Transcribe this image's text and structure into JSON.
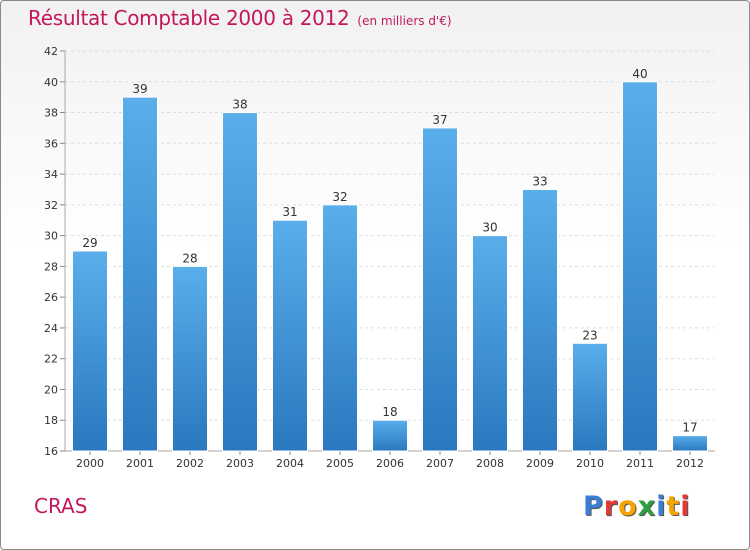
{
  "header": {
    "title": "Résultat Comptable 2000 à 2012",
    "unit": "(en milliers d'€)"
  },
  "location": "CRAS",
  "logo": {
    "letters": [
      {
        "char": "P",
        "color": "#3a7fd5"
      },
      {
        "char": "r",
        "color": "#e53935"
      },
      {
        "char": "o",
        "color": "#f7a400"
      },
      {
        "char": "x",
        "color": "#2e9e3e"
      },
      {
        "char": "i",
        "color": "#3a7fd5"
      },
      {
        "char": "t",
        "color": "#f7a400"
      },
      {
        "char": "i",
        "color": "#e53935"
      }
    ]
  },
  "chart_data": {
    "type": "bar",
    "title": "Résultat Comptable 2000 à 2012",
    "subtitle": "(en milliers d'€)",
    "xlabel": "",
    "ylabel": "",
    "categories": [
      "2000",
      "2001",
      "2002",
      "2003",
      "2004",
      "2005",
      "2006",
      "2007",
      "2008",
      "2009",
      "2010",
      "2011",
      "2012"
    ],
    "values": [
      29,
      39,
      28,
      38,
      31,
      32,
      18,
      37,
      30,
      33,
      23,
      40,
      17
    ],
    "ylim": [
      16,
      42
    ],
    "yticks": [
      16,
      18,
      20,
      22,
      24,
      26,
      28,
      30,
      32,
      34,
      36,
      38,
      40,
      42
    ],
    "grid": true,
    "bar_color": "#4a9fe0"
  }
}
